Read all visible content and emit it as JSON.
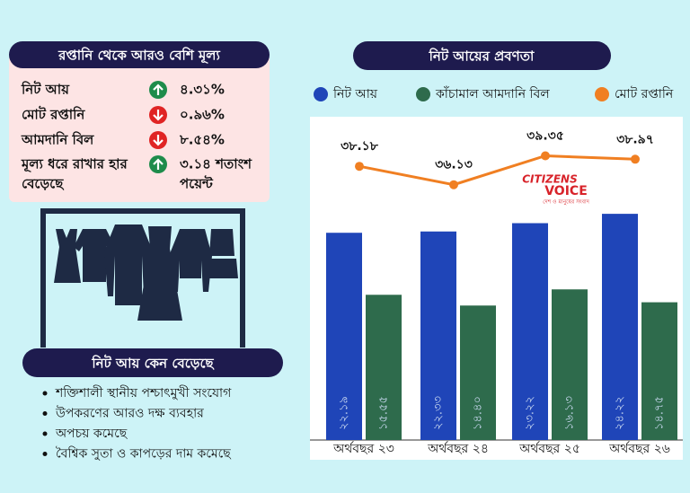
{
  "panel": {
    "title": "রপ্তানি থেকে আরও বেশি মূল্য",
    "rows": [
      {
        "label": "নিট আয়",
        "direction": "up",
        "value": "৪.৩১%"
      },
      {
        "label": "মোট রপ্তানি",
        "direction": "down",
        "value": "০.৯৬%"
      },
      {
        "label": "আমদানি বিল",
        "direction": "down",
        "value": "৮.৫৪%"
      },
      {
        "label": [
          "মূল্য ধরে রাখার হার",
          "বেড়েছে"
        ],
        "direction": "up",
        "value": [
          "৩.১৪ শতাংশ",
          "পয়েন্ট"
        ]
      }
    ]
  },
  "reasons": {
    "title": "নিট আয় কেন বেড়েছে",
    "items": [
      "শক্তিশালী স্থানীয় পশ্চাৎমুখী সংযোগ",
      "উপকরণের আরও দক্ষ ব্যবহার",
      "অপচয় কমেছে",
      "বৈশ্বিক সুতা ও কাপড়ের দাম কমেছে"
    ]
  },
  "logo": {
    "name": [
      "CITIZENS",
      "VOICE"
    ],
    "tagline": "দেশ ও মানুষের সংবাদ"
  },
  "chart_data": {
    "type": "bar",
    "title": "নিট আয়ের প্রবণতা",
    "categories": [
      "অর্থবছর ২৩",
      "অর্থবছর ২৪",
      "অর্থবছর ২৫",
      "অর্থবছর ২৬"
    ],
    "series": [
      {
        "name": "নিট আয়",
        "color": "#1f45b8",
        "values": [
          22.19,
          22.33,
          23.22,
          24.22
        ],
        "value_labels": [
          "২২.১৯",
          "২২.৩৩",
          "২৩.২২",
          "২৪.২২"
        ]
      },
      {
        "name": "কাঁচামাল আমদানি বিল",
        "color": "#2e6b4c",
        "values": [
          15.55,
          14.4,
          16.13,
          14.75
        ],
        "value_labels": [
          "১৫.৫৫",
          "১৪.৪০",
          "১৬.১৩",
          "১৪.৭৫"
        ]
      },
      {
        "name": "মোট রপ্তানি",
        "color": "#f07f22",
        "type": "line",
        "values": [
          38.18,
          36.13,
          39.35,
          38.97
        ],
        "value_labels": [
          "৩৮.১৮",
          "৩৬.১৩",
          "৩৯.৩৫",
          "৩৮.৯৭"
        ]
      }
    ]
  }
}
